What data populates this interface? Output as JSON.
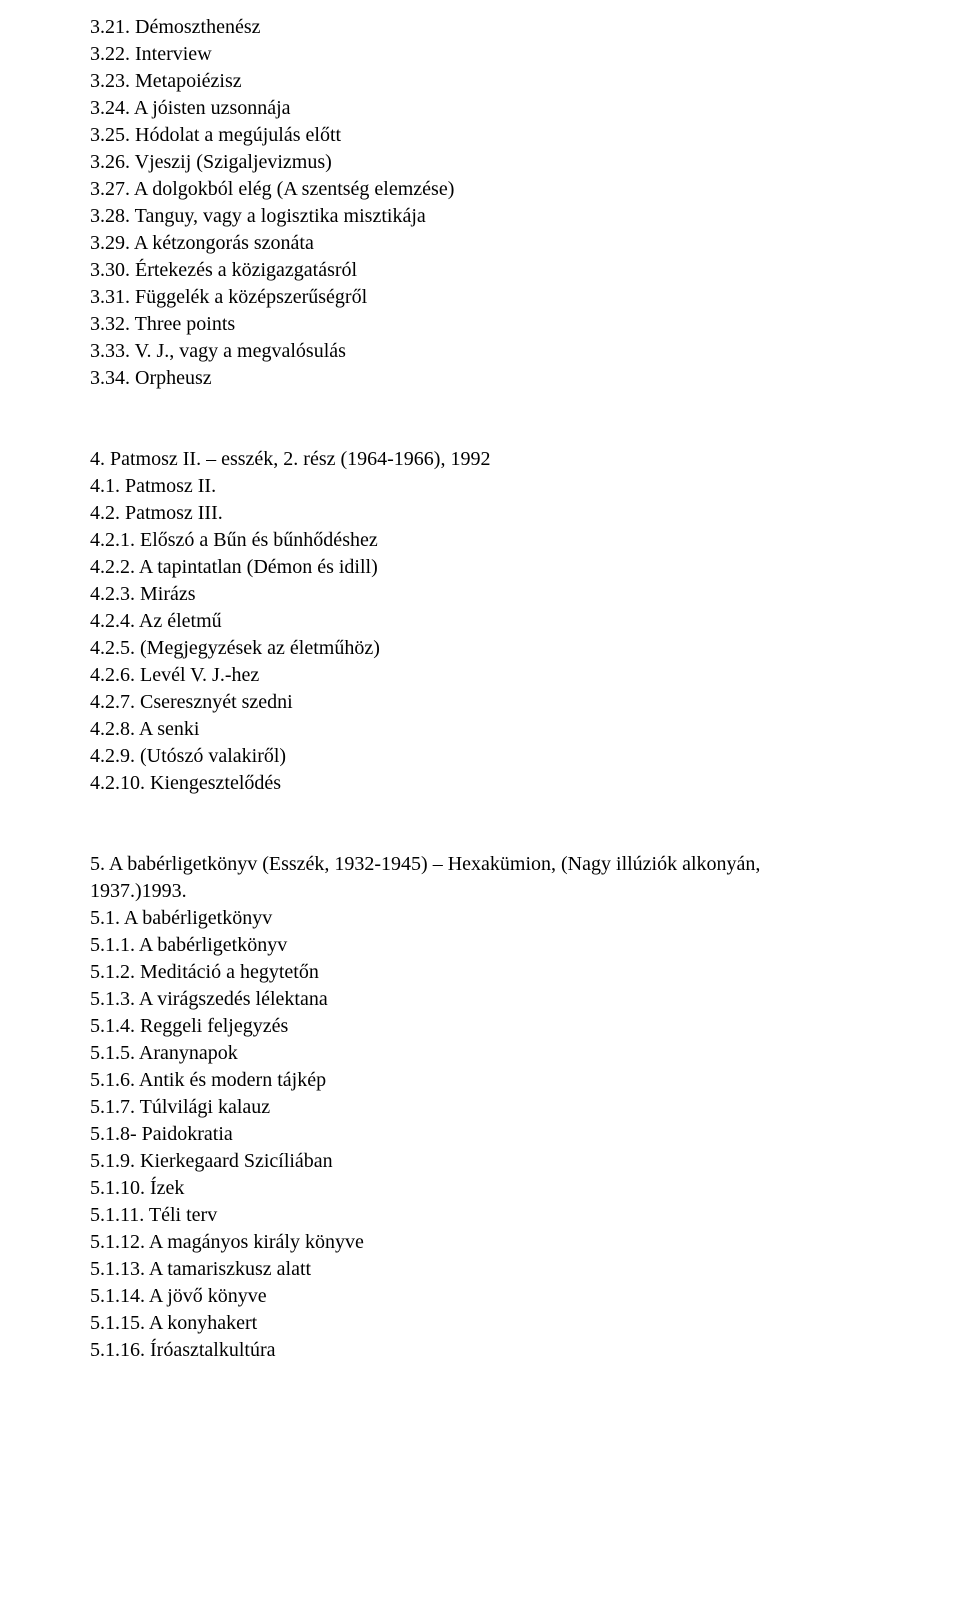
{
  "typography": {
    "font_family": "Times New Roman",
    "font_size_pt": 15,
    "line_height": 1.35,
    "text_color": "#000000",
    "background_color": "#ffffff"
  },
  "sections": {
    "s3": {
      "items": [
        {
          "num": "3.21.",
          "title": "Démoszthenész"
        },
        {
          "num": "3.22.",
          "title": "Interview"
        },
        {
          "num": "3.23.",
          "title": "Metapoiézisz"
        },
        {
          "num": "3.24.",
          "title": "A jóisten uzsonnája"
        },
        {
          "num": "3.25.",
          "title": "Hódolat a megújulás előtt"
        },
        {
          "num": "3.26.",
          "title": "Vjeszij (Szigaljevizmus)"
        },
        {
          "num": "3.27.",
          "title": "A dolgokból elég (A szentség elemzése)"
        },
        {
          "num": "3.28.",
          "title": "Tanguy, vagy a logisztika misztikája"
        },
        {
          "num": "3.29.",
          "title": "A kétzongorás szonáta"
        },
        {
          "num": "3.30.",
          "title": "Értekezés a közigazgatásról"
        },
        {
          "num": "3.31.",
          "title": "Függelék a középszerűségről"
        },
        {
          "num": "3.32.",
          "title": "Three points"
        },
        {
          "num": "3.33.",
          "title": "V. J., vagy a megvalósulás"
        },
        {
          "num": "3.34.",
          "title": "Orpheusz"
        }
      ]
    },
    "s4": {
      "heading": "4. Patmosz II. – esszék, 2. rész (1964-1966), 1992",
      "items": [
        {
          "num": "4.1.",
          "title": "Patmosz II."
        },
        {
          "num": "4.2.",
          "title": "Patmosz III."
        },
        {
          "num": "4.2.1.",
          "title": "Előszó a Bűn és bűnhődéshez"
        },
        {
          "num": "4.2.2.",
          "title": "A tapintatlan (Démon és idill)"
        },
        {
          "num": "4.2.3.",
          "title": "Mirázs"
        },
        {
          "num": "4.2.4.",
          "title": "Az életmű"
        },
        {
          "num": "4.2.5.",
          "title": "(Megjegyzések az életműhöz)"
        },
        {
          "num": "4.2.6.",
          "title": "Levél V. J.-hez"
        },
        {
          "num": "4.2.7.",
          "title": "Cseresznyét szedni"
        },
        {
          "num": "4.2.8.",
          "title": "A senki"
        },
        {
          "num": "4.2.9.",
          "title": "(Utószó valakiről)"
        },
        {
          "num": "4.2.10.",
          "title": "Kiengesztelődés"
        }
      ]
    },
    "s5": {
      "heading_lines": [
        "5. A babérligetkönyv (Esszék, 1932-1945) – Hexakümion, (Nagy illúziók alkonyán,",
        "1937.)1993."
      ],
      "items": [
        {
          "num": "5.1.",
          "title": "A babérligetkönyv"
        },
        {
          "num": "5.1.1.",
          "title": "A babérligetkönyv"
        },
        {
          "num": "5.1.2.",
          "title": "Meditáció a hegytetőn"
        },
        {
          "num": "5.1.3.",
          "title": "A virágszedés lélektana"
        },
        {
          "num": "5.1.4.",
          "title": "Reggeli feljegyzés"
        },
        {
          "num": "5.1.5.",
          "title": "Aranynapok"
        },
        {
          "num": "5.1.6.",
          "title": "Antik és modern tájkép"
        },
        {
          "num": "5.1.7.",
          "title": "Túlvilági kalauz"
        },
        {
          "num": "5.1.8-",
          "title": "Paidokratia"
        },
        {
          "num": "5.1.9.",
          "title": "Kierkegaard Szicíliában"
        },
        {
          "num": "5.1.10.",
          "title": "Ízek"
        },
        {
          "num": "5.1.11.",
          "title": "Téli terv"
        },
        {
          "num": "5.1.12.",
          "title": "A magányos király könyve"
        },
        {
          "num": "5.1.13.",
          "title": "A tamariszkusz alatt"
        },
        {
          "num": "5.1.14.",
          "title": "A jövő könyve"
        },
        {
          "num": "5.1.15.",
          "title": "A konyhakert"
        },
        {
          "num": "5.1.16.",
          "title": "Íróasztalkultúra"
        }
      ]
    }
  }
}
